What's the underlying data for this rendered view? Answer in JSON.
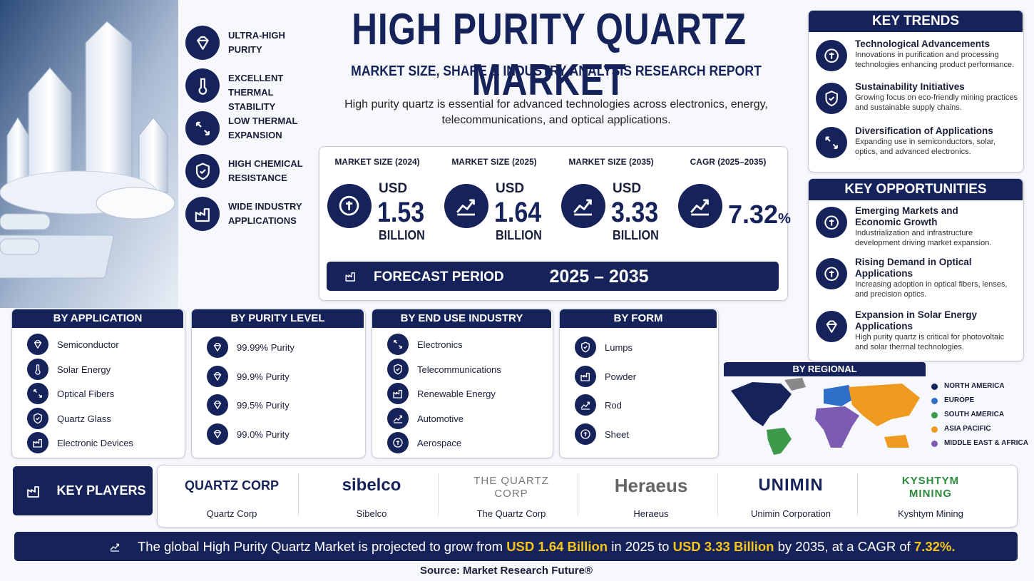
{
  "header": {
    "title": "HIGH PURITY QUARTZ MARKET",
    "subtitle": "MARKET SIZE, SHARE & INDUSTRY ANALYSIS RESEARCH REPORT",
    "description": "High purity quartz is essential for advanced technologies across electronics, energy, telecommunications, and optical applications."
  },
  "features": [
    "ULTRA-HIGH PURITY",
    "EXCELLENT THERMAL STABILITY",
    "LOW THERMAL EXPANSION",
    "HIGH CHEMICAL RESISTANCE",
    "WIDE INDUSTRY APPLICATIONS"
  ],
  "metrics": [
    {
      "label": "MARKET SIZE (2024)",
      "prefix": "USD",
      "value": "1.53",
      "unit": "BILLION"
    },
    {
      "label": "MARKET SIZE (2025)",
      "prefix": "USD",
      "value": "1.64",
      "unit": "BILLION"
    },
    {
      "label": "MARKET SIZE (2035)",
      "prefix": "USD",
      "value": "3.33",
      "unit": "BILLION"
    },
    {
      "label": "CAGR (2025–2035)",
      "value": "7.32",
      "suffix": "%"
    }
  ],
  "forecast": {
    "label": "FORECAST PERIOD",
    "value": "2025 – 2035"
  },
  "key_trends": {
    "title": "KEY TRENDS",
    "items": [
      {
        "title": "Technological Advancements",
        "text": "Innovations in purification and processing technologies enhancing product performance."
      },
      {
        "title": "Sustainability Initiatives",
        "text": "Growing focus on eco-friendly mining practices and sustainable supply chains."
      },
      {
        "title": "Diversification of Applications",
        "text": "Expanding use in semiconductors, solar, optics, and advanced electronics."
      }
    ]
  },
  "key_opportunities": {
    "title": "KEY OPPORTUNITIES",
    "items": [
      {
        "title": "Emerging Markets and Economic Growth",
        "text": "Industrialization and infrastructure development driving market expansion."
      },
      {
        "title": "Rising Demand in Optical Applications",
        "text": "Increasing adoption in optical fibers, lenses, and precision optics."
      },
      {
        "title": "Expansion in Solar Energy Applications",
        "text": "High purity quartz is critical for photovoltaic and solar thermal technologies."
      }
    ]
  },
  "segments": [
    {
      "title": "BY APPLICATION",
      "items": [
        "Semiconductor",
        "Solar Energy",
        "Optical Fibers",
        "Quartz Glass",
        "Electronic Devices"
      ]
    },
    {
      "title": "BY PURITY LEVEL",
      "items": [
        "99.99% Purity",
        "99.9% Purity",
        "99.5% Purity",
        "99.0% Purity"
      ]
    },
    {
      "title": "BY END USE INDUSTRY",
      "items": [
        "Electronics",
        "Telecommunications",
        "Renewable Energy",
        "Automotive",
        "Aerospace"
      ]
    },
    {
      "title": "BY FORM",
      "items": [
        "Lumps",
        "Powder",
        "Rod",
        "Sheet"
      ]
    }
  ],
  "regional": {
    "title": "BY REGIONAL",
    "legend": [
      {
        "name": "NORTH AMERICA",
        "color": "#16235a"
      },
      {
        "name": "EUROPE",
        "color": "#2f6fc9"
      },
      {
        "name": "SOUTH AMERICA",
        "color": "#3d9a4a"
      },
      {
        "name": "ASIA PACIFIC",
        "color": "#ee9a1f"
      },
      {
        "name": "MIDDLE EAST & AFRICA",
        "color": "#7c5cb3"
      }
    ]
  },
  "key_players": {
    "title": "KEY PLAYERS",
    "players": [
      {
        "logo": [
          "QUARTZ CORP"
        ],
        "name": "Quartz Corp"
      },
      {
        "logo": [
          "sibelco"
        ],
        "name": "Sibelco"
      },
      {
        "logo": [
          "THE QUARTZ",
          "CORP"
        ],
        "name": "The Quartz Corp"
      },
      {
        "logo": [
          "Heraeus"
        ],
        "name": "Heraeus"
      },
      {
        "logo": [
          "UNIMIN"
        ],
        "name": "Unimin Corporation"
      },
      {
        "logo": [
          "KYSHTYM",
          "MINING"
        ],
        "name": "Kyshtym Mining"
      }
    ]
  },
  "footer": {
    "parts": [
      {
        "text": "The global High Purity Quartz Market is projected to grow from",
        "highlight": false
      },
      {
        "text": "USD 1.64 Billion",
        "highlight": true
      },
      {
        "text": "in 2025 to",
        "highlight": false
      },
      {
        "text": "USD 3.33 Billion",
        "highlight": true
      },
      {
        "text": "by 2035, at a CAGR of",
        "highlight": false
      },
      {
        "text": "7.32%.",
        "highlight": true
      }
    ],
    "source": "Source: Market Research Future®"
  }
}
